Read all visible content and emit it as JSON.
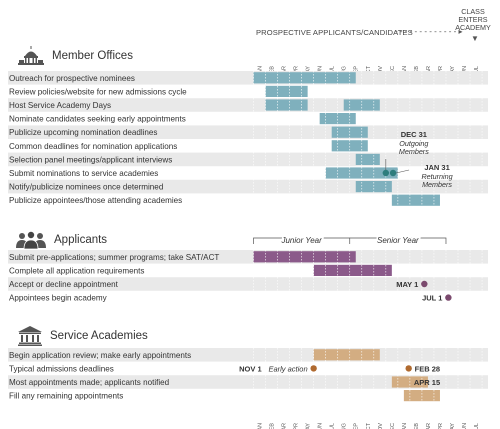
{
  "header": {
    "axis_title": "PROSPECTIVE APPLICANTS/CANDIDATES",
    "class_enters": [
      "CLASS",
      "ENTERS",
      "ACADEMY"
    ]
  },
  "months": [
    "JAN",
    "FEB",
    "MAR",
    "APR",
    "MAY",
    "JUN",
    "JUL",
    "AUG",
    "SEP",
    "OCT",
    "NOV",
    "DEC",
    "JAN",
    "FEB",
    "MAR",
    "APR",
    "MAY",
    "JUN",
    "JUL"
  ],
  "colors": {
    "teal": "#7fb0bd",
    "purple": "#8b5a8a",
    "tan": "#d3ad82",
    "dot_teal": "#2e7d7d",
    "dot_purple": "#7b4a6e",
    "dot_tan": "#b06a2f",
    "row_shade": "#e9e9e9"
  },
  "sections": [
    {
      "title": "Member Offices",
      "icon": "capitol-dome-icon",
      "color_key": "teal",
      "rows": [
        {
          "label": "Outreach for prospective nominees",
          "bars": [
            [
              0,
              8.5
            ]
          ]
        },
        {
          "label": "Review policies/website for new admissions cycle",
          "bars": [
            [
              1,
              4.5
            ]
          ]
        },
        {
          "label": "Host Service Academy Days",
          "bars": [
            [
              1,
              4.5
            ],
            [
              7.5,
              10.5
            ]
          ]
        },
        {
          "label": "Nominate candidates seeking early appointments",
          "bars": [
            [
              5.5,
              8.5
            ]
          ]
        },
        {
          "label": "Publicize upcoming nomination deadlines",
          "bars": [
            [
              6.5,
              9.5
            ]
          ]
        },
        {
          "label": "Common deadlines for nomination applications",
          "bars": [
            [
              6.5,
              9.5
            ]
          ]
        },
        {
          "label": "Selection panel meetings/applicant interviews",
          "bars": [
            [
              8.5,
              10.5
            ]
          ]
        },
        {
          "label": "Submit nominations to service academies",
          "bars": [
            [
              6,
              12
            ]
          ]
        },
        {
          "label": "Notify/publicize nominees once determined",
          "bars": [
            [
              8.5,
              11.5
            ]
          ]
        },
        {
          "label": "Publicize appointees/those attending academies",
          "bars": [
            [
              11.5,
              15.5
            ]
          ]
        }
      ]
    },
    {
      "title": "Applicants",
      "icon": "people-group-icon",
      "color_key": "purple",
      "rows": [
        {
          "label": "Submit pre-applications; summer programs; take SAT/ACT",
          "bars": [
            [
              0,
              8.5
            ]
          ]
        },
        {
          "label": "Complete all application requirements",
          "bars": [
            [
              5,
              11.5
            ]
          ]
        },
        {
          "label": "Accept or decline appointment",
          "bars": []
        },
        {
          "label": "Appointees begin academy",
          "bars": []
        }
      ]
    },
    {
      "title": "Service Academies",
      "icon": "academy-building-icon",
      "color_key": "tan",
      "rows": [
        {
          "label": "Begin application review;  make early appointments",
          "bars": [
            [
              5,
              10.5
            ]
          ]
        },
        {
          "label": "Typical admissions deadlines",
          "bars": []
        },
        {
          "label": "Most appointments made; applicants notified",
          "bars": [
            [
              11.5,
              14.5
            ]
          ]
        },
        {
          "label": "Fill any remaining appointments",
          "bars": [
            [
              12.5,
              15.5
            ]
          ]
        }
      ]
    }
  ],
  "year_labels": {
    "junior": "Junior Year",
    "senior": "Senior Year"
  },
  "annotations": [
    {
      "type": "dot",
      "section": 0,
      "row": 7,
      "month": 11.0,
      "color_key": "dot_teal",
      "label": "DEC 31",
      "sub": [
        "Outgoing",
        "Members"
      ],
      "place": "above"
    },
    {
      "type": "dot",
      "section": 0,
      "row": 7,
      "month": 11.6,
      "color_key": "dot_teal",
      "label": "JAN 31",
      "sub": [
        "Returning",
        "Members"
      ],
      "place": "right"
    },
    {
      "type": "dot",
      "section": 1,
      "row": 2,
      "month": 14.2,
      "color_key": "dot_purple",
      "label": "MAY 1",
      "place": "left"
    },
    {
      "type": "dot",
      "section": 1,
      "row": 3,
      "month": 16.2,
      "color_key": "dot_purple",
      "label": "JUL 1",
      "place": "left"
    },
    {
      "type": "dot",
      "section": 2,
      "row": 1,
      "month": 5.0,
      "color_key": "dot_tan",
      "label": "NOV 1",
      "italic": "Early action",
      "place": "left-nov"
    },
    {
      "type": "dot",
      "section": 2,
      "row": 1,
      "month": 12.9,
      "color_key": "dot_tan",
      "label": "FEB 28",
      "place": "right"
    },
    {
      "type": "barlabel",
      "section": 2,
      "row": 2,
      "month": 13.0,
      "label": "APR 15"
    }
  ]
}
